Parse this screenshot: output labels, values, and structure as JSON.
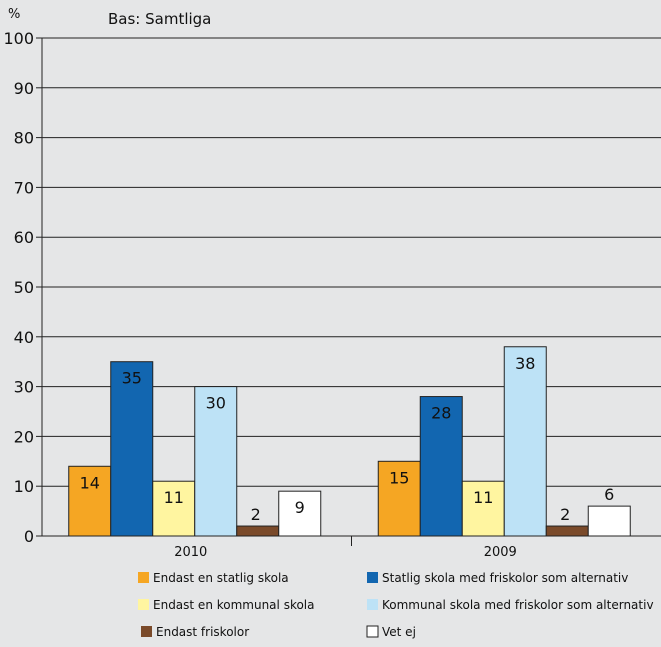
{
  "chart_data": {
    "type": "bar",
    "subtitle": "Bas: Samtliga",
    "ylabel": "%",
    "ylim": [
      0,
      100
    ],
    "yticks": [
      0,
      10,
      20,
      30,
      40,
      50,
      60,
      70,
      80,
      90,
      100
    ],
    "grid": true,
    "legend_position": "bottom",
    "categories": [
      "2010",
      "2009"
    ],
    "series": [
      {
        "name": "Endast en statlig skola",
        "values": [
          14,
          15
        ],
        "color": "#f5a623",
        "label_color": "#111111"
      },
      {
        "name": "Statlig skola med friskolor som alternativ",
        "values": [
          35,
          28
        ],
        "color": "#1266b0",
        "label_color": "#ffffff"
      },
      {
        "name": "Endast en kommunal skola",
        "values": [
          11,
          11
        ],
        "color": "#fff5a0",
        "label_color": "#111111"
      },
      {
        "name": "Kommunal skola med friskolor som alternativ",
        "values": [
          30,
          38
        ],
        "color": "#bde2f6",
        "label_color": "#111111"
      },
      {
        "name": "Endast friskolor",
        "values": [
          2,
          2
        ],
        "color": "#7a4a2a",
        "label_color": "#111111"
      },
      {
        "name": "Vet ej",
        "values": [
          9,
          6
        ],
        "color": "#ffffff",
        "label_color": "#111111"
      }
    ]
  }
}
